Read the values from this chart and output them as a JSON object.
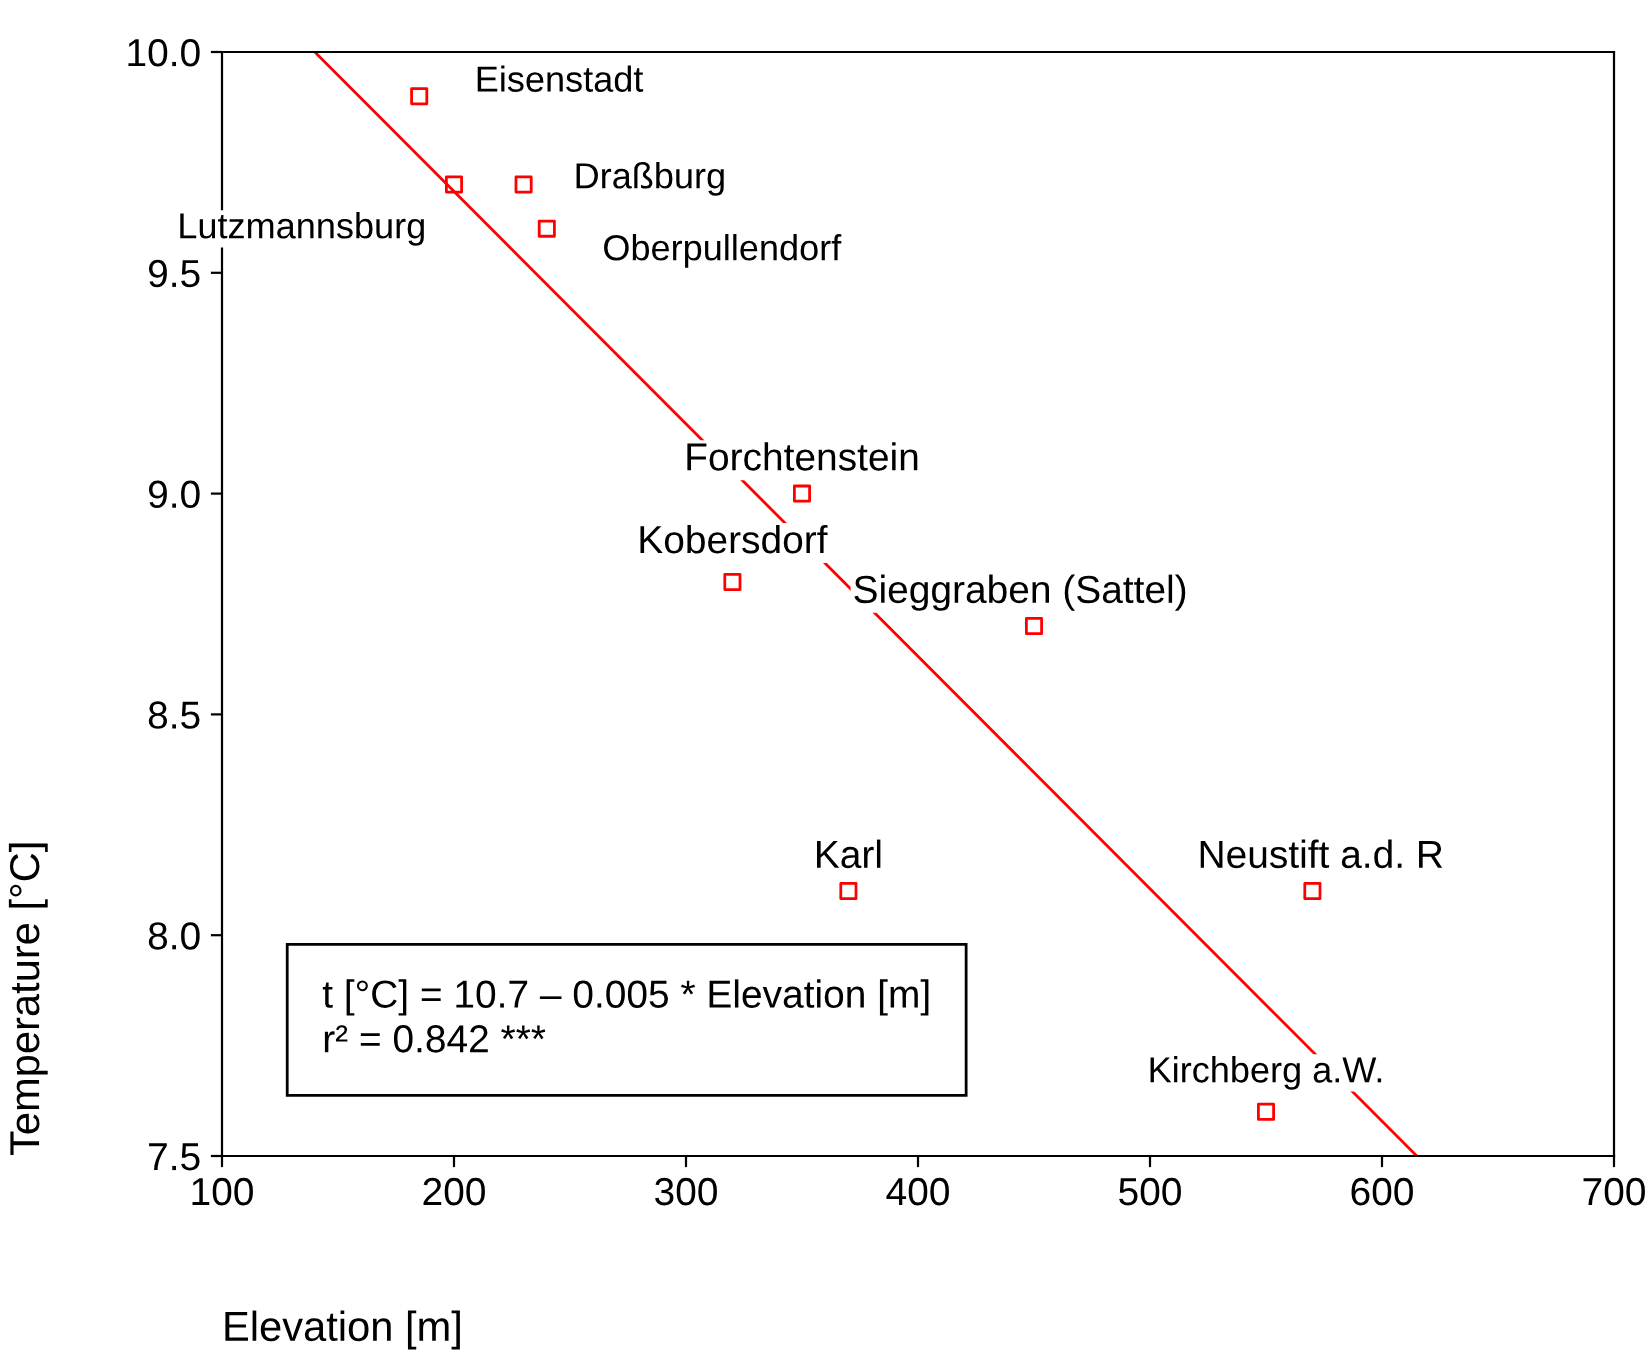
{
  "chart_data": {
    "type": "scatter",
    "xlabel": "Elevation [m]",
    "ylabel": "Temperature [°C]",
    "xlim": [
      100,
      700
    ],
    "xticks": [
      100,
      200,
      300,
      400,
      500,
      600,
      700
    ],
    "ylim": [
      7.5,
      10.0
    ],
    "yticks": [
      {
        "value": 7.5,
        "label": "7.5"
      },
      {
        "value": 8.0,
        "label": "8.0"
      },
      {
        "value": 8.5,
        "label": "8.5"
      },
      {
        "value": 9.0,
        "label": "9.0"
      },
      {
        "value": 9.5,
        "label": "9.5"
      },
      {
        "value": 10.0,
        "label": "10.0"
      }
    ],
    "grid": false,
    "legend": false,
    "series": [
      {
        "marker": "square",
        "color": "#ff0000",
        "x": [
          185,
          200,
          230,
          240,
          350,
          320,
          450,
          370,
          570,
          550
        ],
        "values": [
          9.9,
          9.7,
          9.7,
          9.6,
          9.0,
          8.8,
          8.7,
          8.1,
          8.1,
          7.6
        ]
      },
      {
        "type": "line",
        "color": "#ff0000",
        "x": [
          140,
          615
        ],
        "values": [
          10.0,
          7.5
        ]
      }
    ],
    "annotations": [
      {
        "text": "Eisenstadt",
        "x": 185,
        "y": 9.9
      },
      {
        "text": "Lutzmannsburg",
        "x": 200,
        "y": 9.7
      },
      {
        "text": "Draßburg",
        "x": 230,
        "y": 9.7
      },
      {
        "text": "Oberpullendorf",
        "x": 240,
        "y": 9.6
      },
      {
        "text": "Forchtenstein",
        "x": 350,
        "y": 9.0
      },
      {
        "text": "Kobersdorf",
        "x": 320,
        "y": 8.8
      },
      {
        "text": "Sieggraben (Sattel)",
        "x": 450,
        "y": 8.7
      },
      {
        "text": "Karl",
        "x": 370,
        "y": 8.1
      },
      {
        "text": "Neustift a.d. R",
        "x": 570,
        "y": 8.1
      },
      {
        "text": "Kirchberg a.W.",
        "x": 550,
        "y": 7.6
      },
      "t [°C] = 10.7 – 0.005 * Elevation [m]\nr² = 0.842 ***"
    ]
  }
}
